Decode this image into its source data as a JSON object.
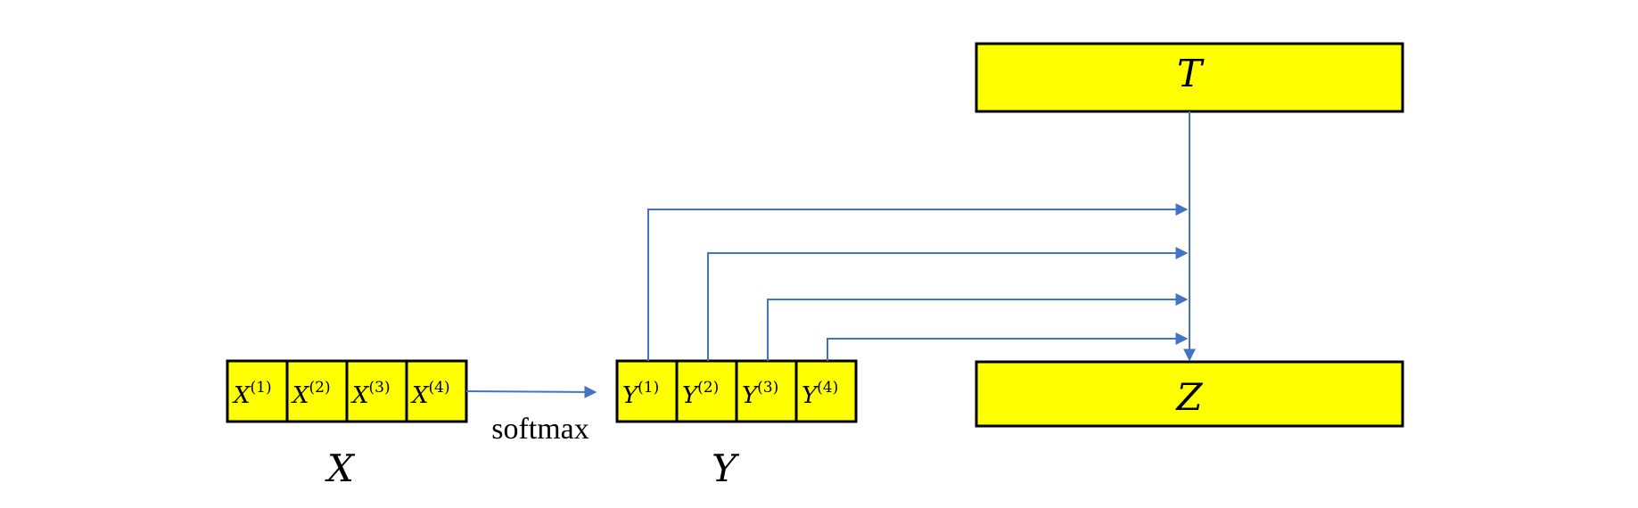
{
  "colors": {
    "box_fill": "#ffff00",
    "box_stroke": "#000000",
    "arrow": "#4472c4"
  },
  "x_vector": {
    "label": "X",
    "cells": [
      {
        "base": "X",
        "sup": "(1)"
      },
      {
        "base": "X",
        "sup": "(2)"
      },
      {
        "base": "X",
        "sup": "(3)"
      },
      {
        "base": "X",
        "sup": "(4)"
      }
    ]
  },
  "y_vector": {
    "label": "Y",
    "cells": [
      {
        "base": "Y",
        "sup": "(1)"
      },
      {
        "base": "Y",
        "sup": "(2)"
      },
      {
        "base": "Y",
        "sup": "(3)"
      },
      {
        "base": "Y",
        "sup": "(4)"
      }
    ]
  },
  "softmax_label": "softmax",
  "t_box": {
    "label": "T"
  },
  "z_box": {
    "label": "Z"
  }
}
